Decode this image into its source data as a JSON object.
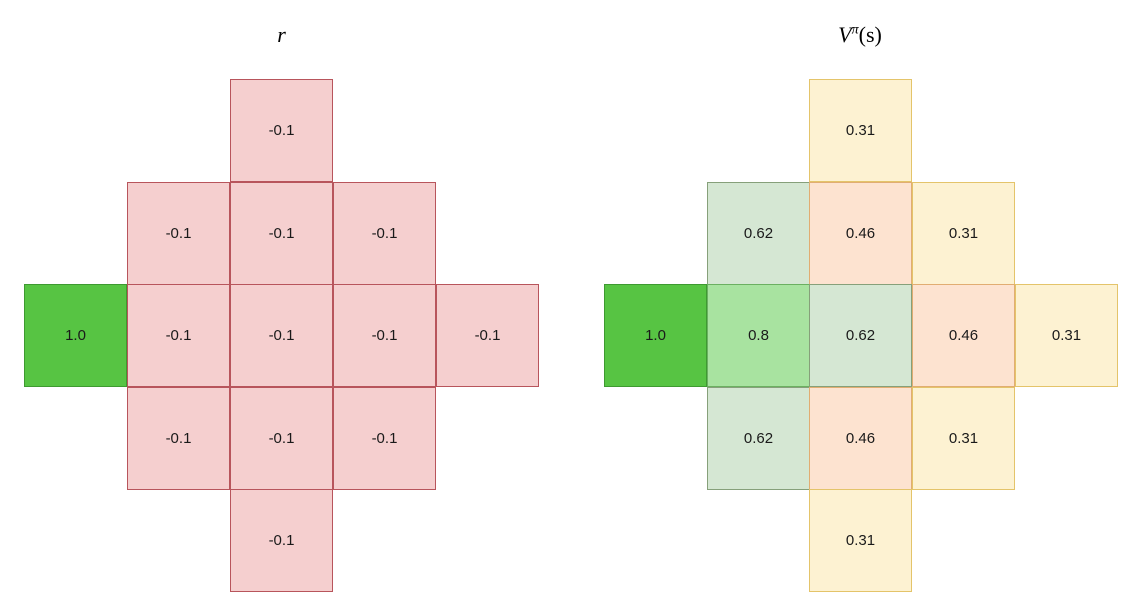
{
  "reward_panel": {
    "title": "r",
    "goal": "1.0",
    "cells": {
      "up2": "-0.1",
      "up1_left": "-0.1",
      "up1_mid": "-0.1",
      "up1_right": "-0.1",
      "row_c1": "-0.1",
      "row_c2": "-0.1",
      "row_c3": "-0.1",
      "row_c4": "-0.1",
      "down1_left": "-0.1",
      "down1_mid": "-0.1",
      "down1_right": "-0.1",
      "down2": "-0.1"
    },
    "colors": {
      "goal_fill": "#57c443",
      "cell_fill": "#f5cfcf",
      "cell_border": "#b8555c"
    }
  },
  "value_panel": {
    "title_symbol": "V",
    "title_superscript": "π",
    "title_argument": "(s)",
    "goal": "1.0",
    "cells": {
      "up2": "0.31",
      "up1_left": "0.62",
      "up1_mid": "0.46",
      "up1_right": "0.31",
      "row_c1": "0.8",
      "row_c2": "0.62",
      "row_c3": "0.46",
      "row_c4": "0.31",
      "down1_left": "0.62",
      "down1_mid": "0.46",
      "down1_right": "0.31",
      "down2": "0.31"
    },
    "colors": {
      "goal_fill": "#57c443",
      "v080_fill": "#a8e3a0",
      "v062_fill": "#d5e7d3",
      "v046_fill": "#fde3d0",
      "v031_fill": "#fdf2d2"
    }
  }
}
